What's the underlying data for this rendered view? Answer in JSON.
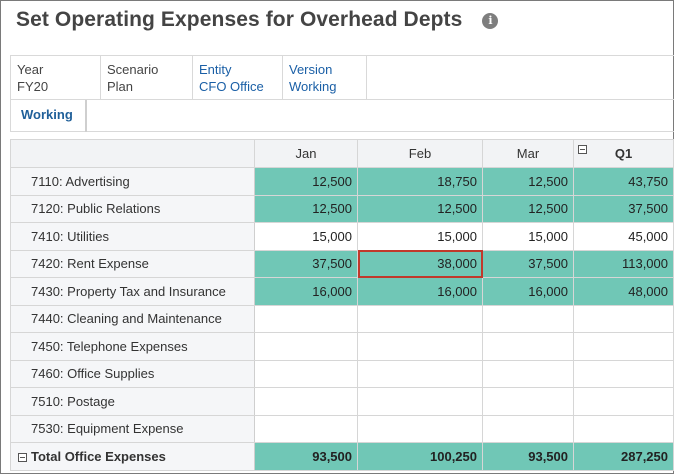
{
  "page": {
    "title": "Set Operating Expenses for Overhead Depts",
    "info_icon": "i"
  },
  "pov": [
    {
      "label": "Year",
      "value": "FY20",
      "style": "static"
    },
    {
      "label": "Scenario",
      "value": "Plan",
      "style": "static"
    },
    {
      "label": "Entity",
      "value": "CFO Office",
      "style": "link"
    },
    {
      "label": "Version",
      "value": "Working",
      "style": "link"
    }
  ],
  "tabs": [
    {
      "label": "Working",
      "active": true
    }
  ],
  "grid": {
    "columns": [
      "Jan",
      "Feb",
      "Mar",
      "Q1"
    ],
    "rows": [
      {
        "label": "7110: Advertising",
        "values": [
          "12,500",
          "18,750",
          "12,500",
          "43,750"
        ],
        "filled": true
      },
      {
        "label": "7120: Public Relations",
        "values": [
          "12,500",
          "12,500",
          "12,500",
          "37,500"
        ],
        "filled": true
      },
      {
        "label": "7410: Utilities",
        "values": [
          "15,000",
          "15,000",
          "15,000",
          "45,000"
        ],
        "filled": false
      },
      {
        "label": "7420: Rent Expense",
        "values": [
          "37,500",
          "38,000",
          "37,500",
          "113,000"
        ],
        "filled": true,
        "selected_col": 1
      },
      {
        "label": "7430: Property Tax and Insurance",
        "values": [
          "16,000",
          "16,000",
          "16,000",
          "48,000"
        ],
        "filled": true
      },
      {
        "label": "7440: Cleaning and Maintenance",
        "values": [
          "",
          "",
          "",
          ""
        ],
        "filled": false
      },
      {
        "label": "7450: Telephone Expenses",
        "values": [
          "",
          "",
          "",
          ""
        ],
        "filled": false
      },
      {
        "label": "7460: Office Supplies",
        "values": [
          "",
          "",
          "",
          ""
        ],
        "filled": false
      },
      {
        "label": "7510: Postage",
        "values": [
          "",
          "",
          "",
          ""
        ],
        "filled": false
      },
      {
        "label": "7530: Equipment Expense",
        "values": [
          "",
          "",
          "",
          ""
        ],
        "filled": false
      }
    ],
    "total": {
      "label": "Total Office Expenses",
      "values": [
        "93,500",
        "100,250",
        "93,500",
        "287,250"
      ]
    }
  },
  "colors": {
    "cell_fill": "#70c7b6",
    "selection": "#c0392b",
    "link": "#1a5fa6"
  }
}
